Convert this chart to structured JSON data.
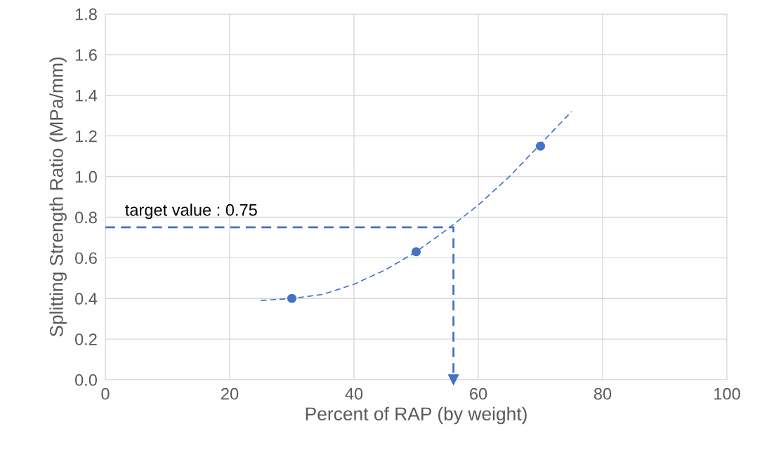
{
  "chart_data": {
    "type": "scatter",
    "xlabel": "Percent of RAP (by weight)",
    "ylabel": "Splitting Strength Ratio (MPa/mm)",
    "xlim": [
      0,
      100
    ],
    "xticks": [
      0,
      20,
      40,
      60,
      80,
      100
    ],
    "ylim": [
      0,
      1.8
    ],
    "yticks": [
      {
        "value": 0,
        "label": "0.0"
      },
      {
        "value": 0.2,
        "label": "0.2"
      },
      {
        "value": 0.4,
        "label": "0.4"
      },
      {
        "value": 0.6,
        "label": "0.6"
      },
      {
        "value": 0.8,
        "label": "0.8"
      },
      {
        "value": 1.0,
        "label": "1.0"
      },
      {
        "value": 1.2,
        "label": "1.2"
      },
      {
        "value": 1.4,
        "label": "1.4"
      },
      {
        "value": 1.6,
        "label": "1.6"
      },
      {
        "value": 1.8,
        "label": "1.8"
      }
    ],
    "grid": true,
    "legend": false,
    "series": [
      {
        "color": "#4472c4",
        "marker": "circle",
        "x": [
          30,
          50,
          70
        ],
        "values": [
          0.4,
          0.63,
          1.15
        ]
      },
      {
        "type": "line",
        "color": "#4472c4",
        "line_style": "dashed",
        "marker": "none",
        "x": [
          25,
          30,
          35,
          40,
          45,
          50,
          55,
          60,
          65,
          70,
          75
        ],
        "values": [
          0.39,
          0.4,
          0.42,
          0.47,
          0.54,
          0.63,
          0.74,
          0.86,
          1.0,
          1.16,
          1.32
        ]
      },
      {
        "type": "line",
        "color": "#4472c4",
        "line_style": "dashed",
        "marker": "none",
        "x": [
          0,
          56,
          56
        ],
        "values": [
          0.75,
          0.75,
          0
        ]
      }
    ],
    "annotations": [
      {
        "text": "target value : 0.75",
        "x": 0,
        "y": 0.75
      }
    ]
  }
}
